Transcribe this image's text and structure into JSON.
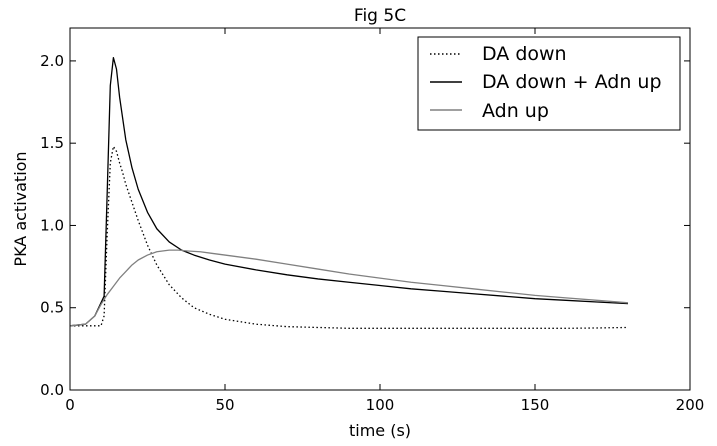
{
  "chart_data": {
    "type": "line",
    "title": "Fig 5C",
    "xlabel": "time (s)",
    "ylabel": "PKA activation",
    "xlim": [
      0,
      200
    ],
    "ylim": [
      0,
      2.2
    ],
    "xticks": [
      0,
      50,
      100,
      150,
      200
    ],
    "xtick_labels": [
      "0",
      "50",
      "100",
      "150",
      "200"
    ],
    "yticks": [
      0,
      0.5,
      1.0,
      1.5,
      2.0
    ],
    "ytick_labels": [
      "0.0",
      "0.5",
      "1.0",
      "1.5",
      "2.0"
    ],
    "grid": false,
    "legend_position": "top-right",
    "series": [
      {
        "name": "DA down",
        "color": "#000000",
        "style": "dotted",
        "x": [
          0,
          5,
          10,
          11,
          12,
          13,
          14,
          15,
          16,
          17,
          18,
          20,
          22,
          25,
          28,
          32,
          36,
          40,
          45,
          50,
          60,
          70,
          80,
          90,
          100,
          110,
          120,
          130,
          140,
          150,
          160,
          170,
          180
        ],
        "y": [
          0.39,
          0.39,
          0.39,
          0.45,
          0.95,
          1.38,
          1.48,
          1.45,
          1.38,
          1.32,
          1.25,
          1.14,
          1.03,
          0.88,
          0.76,
          0.64,
          0.56,
          0.5,
          0.46,
          0.43,
          0.4,
          0.385,
          0.38,
          0.375,
          0.375,
          0.375,
          0.375,
          0.375,
          0.375,
          0.375,
          0.375,
          0.377,
          0.38
        ]
      },
      {
        "name": "DA down + Adn up",
        "color": "#000000",
        "style": "solid",
        "x": [
          0,
          5,
          8,
          10,
          11,
          12,
          13,
          14,
          15,
          16,
          18,
          20,
          22,
          25,
          28,
          32,
          36,
          40,
          45,
          50,
          60,
          70,
          80,
          90,
          100,
          110,
          120,
          130,
          140,
          150,
          160,
          170,
          180
        ],
        "y": [
          0.39,
          0.4,
          0.45,
          0.53,
          0.57,
          1.2,
          1.85,
          2.02,
          1.95,
          1.78,
          1.52,
          1.35,
          1.22,
          1.08,
          0.98,
          0.9,
          0.85,
          0.82,
          0.79,
          0.765,
          0.73,
          0.7,
          0.675,
          0.655,
          0.635,
          0.615,
          0.6,
          0.585,
          0.57,
          0.555,
          0.545,
          0.535,
          0.525
        ]
      },
      {
        "name": "Adn up",
        "color": "#808080",
        "style": "solid",
        "x": [
          0,
          5,
          8,
          10,
          12,
          14,
          16,
          18,
          20,
          22,
          25,
          28,
          32,
          35,
          38,
          42,
          46,
          50,
          60,
          70,
          80,
          90,
          100,
          110,
          120,
          130,
          140,
          150,
          160,
          170,
          180
        ],
        "y": [
          0.39,
          0.4,
          0.45,
          0.52,
          0.58,
          0.63,
          0.68,
          0.72,
          0.76,
          0.79,
          0.82,
          0.84,
          0.85,
          0.85,
          0.845,
          0.84,
          0.83,
          0.82,
          0.795,
          0.765,
          0.735,
          0.705,
          0.68,
          0.655,
          0.635,
          0.615,
          0.595,
          0.575,
          0.56,
          0.545,
          0.53
        ]
      }
    ]
  }
}
